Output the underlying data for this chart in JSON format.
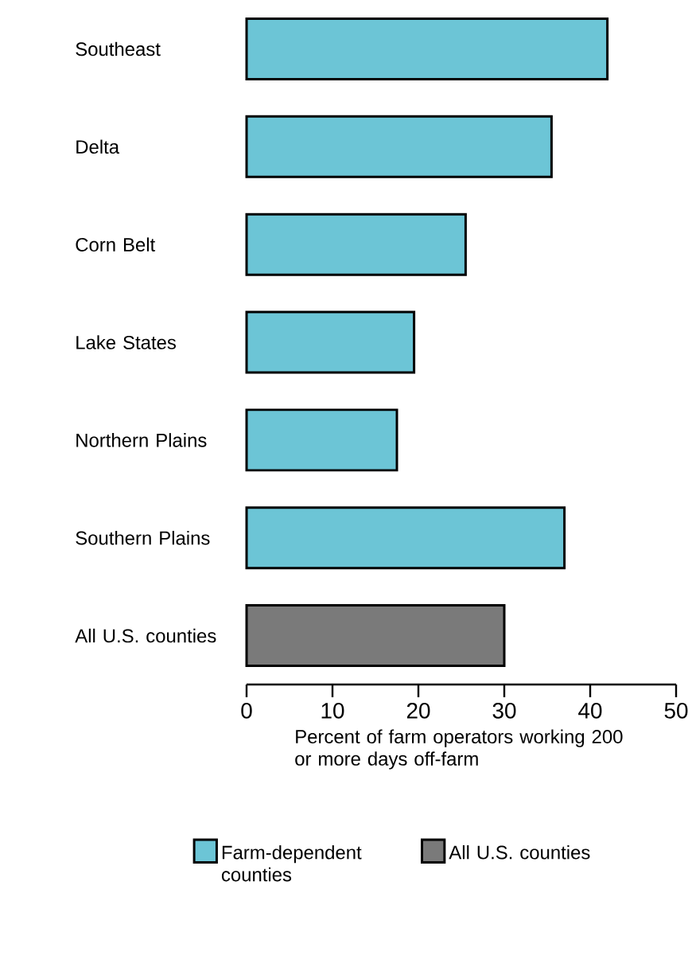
{
  "chart_data": {
    "type": "bar",
    "orientation": "horizontal",
    "xlabel": "Percent of farm operators working 200 or more days off-farm",
    "categories": [
      "Southeast",
      "Delta",
      "Corn Belt",
      "Lake States",
      "Northern Plains",
      "Southern Plains",
      "All U.S. counties"
    ],
    "series": [
      {
        "name": "Farm-dependent counties",
        "color": "#6cc5d6",
        "values": [
          42,
          35.5,
          25.5,
          19.5,
          17.5,
          37,
          null
        ]
      },
      {
        "name": "All U.S. counties",
        "color": "#7a7a7a",
        "values": [
          null,
          null,
          null,
          null,
          null,
          null,
          30
        ]
      }
    ],
    "xlim": [
      0,
      50
    ],
    "xticks": [
      0,
      10,
      20,
      30,
      40,
      50
    ],
    "grid": false,
    "legend": "bottom"
  }
}
